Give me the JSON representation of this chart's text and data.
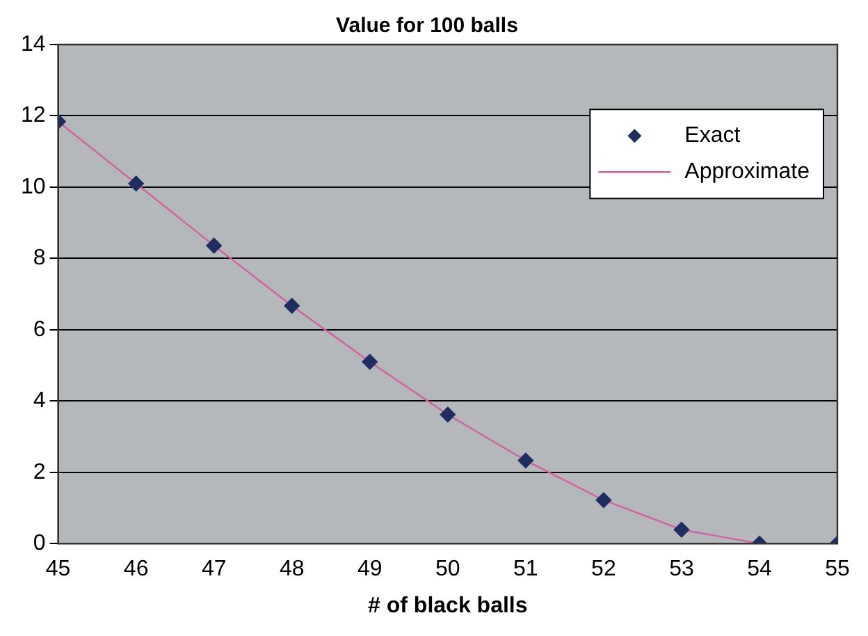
{
  "chart_data": {
    "type": "scatter",
    "title": "Value for 100 balls",
    "xlabel": "# of black balls",
    "x": [
      45,
      46,
      47,
      48,
      49,
      50,
      51,
      52,
      53,
      54,
      55
    ],
    "series": [
      {
        "name": "Exact",
        "marker": "diamond",
        "color": "#1f2d63",
        "values": [
          11.84,
          10.1,
          8.36,
          6.67,
          5.1,
          3.62,
          2.33,
          1.22,
          0.39,
          0,
          0
        ]
      },
      {
        "name": "Approximate",
        "type": "line",
        "marker": "none",
        "color": "#d65fa0",
        "values": [
          11.84,
          10.1,
          8.36,
          6.67,
          5.1,
          3.62,
          2.33,
          1.22,
          0.39,
          0,
          0
        ]
      }
    ],
    "xlim": [
      45,
      55
    ],
    "xticks": [
      45,
      46,
      47,
      48,
      49,
      50,
      51,
      52,
      53,
      54,
      55
    ],
    "ylim": [
      0,
      14
    ],
    "yticks": [
      0,
      2,
      4,
      6,
      8,
      10,
      12,
      14
    ],
    "grid": "y",
    "legend": "top right"
  }
}
